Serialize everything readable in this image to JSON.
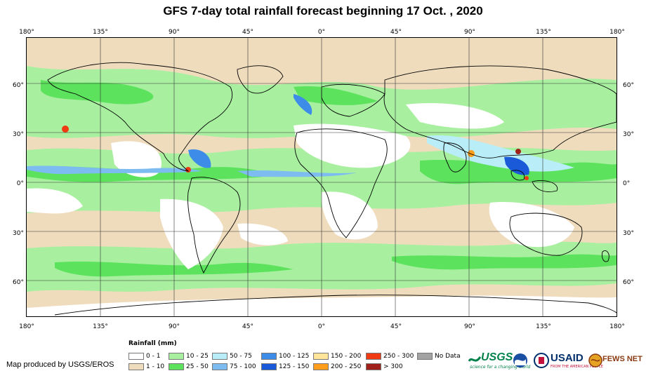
{
  "title": "GFS 7-day total rainfall forecast beginning 17 Oct. , 2020",
  "map": {
    "lon_ticks": [
      "180°",
      "135°",
      "90°",
      "45°",
      "0°",
      "45°",
      "90°",
      "135°",
      "180°"
    ],
    "lat_ticks": [
      "60°",
      "30°",
      "0°",
      "30°",
      "60°"
    ],
    "lon_range": [
      -180,
      180
    ],
    "lat_range": [
      -82,
      88
    ],
    "grid_lons": [
      -135,
      -90,
      -45,
      0,
      45,
      90,
      135
    ],
    "grid_lats": [
      60,
      30,
      0,
      -30,
      -60
    ]
  },
  "legend": {
    "title": "Rainfall (mm)",
    "items": [
      {
        "label": "0 - 1",
        "color": "#ffffff"
      },
      {
        "label": "1 - 10",
        "color": "#efdcbd"
      },
      {
        "label": "10 - 25",
        "color": "#a8f0a0"
      },
      {
        "label": "25 - 50",
        "color": "#5de25d"
      },
      {
        "label": "50 - 75",
        "color": "#b9eef8"
      },
      {
        "label": "75 - 100",
        "color": "#7cbcf0"
      },
      {
        "label": "100 - 125",
        "color": "#3c8ce8"
      },
      {
        "label": "125 - 150",
        "color": "#1a5ad8"
      },
      {
        "label": "150 - 200",
        "color": "#ffe59a"
      },
      {
        "label": "200 - 250",
        "color": "#ff9e1a"
      },
      {
        "label": "250 - 300",
        "color": "#f03a14"
      },
      {
        "label": "> 300",
        "color": "#a0201a"
      },
      {
        "label": "No Data",
        "color": "#a3a3a3"
      }
    ]
  },
  "credit": "Map produced by USGS/EROS",
  "logos": {
    "usgs": "USGS",
    "usgs_tagline": "science for a changing world",
    "usaid": "USAID",
    "usaid_tagline": "FROM THE AMERICAN PEOPLE",
    "fewsnet": "FEWS NET"
  },
  "colors": {
    "land_outline": "#000000",
    "grid": "#333333"
  }
}
